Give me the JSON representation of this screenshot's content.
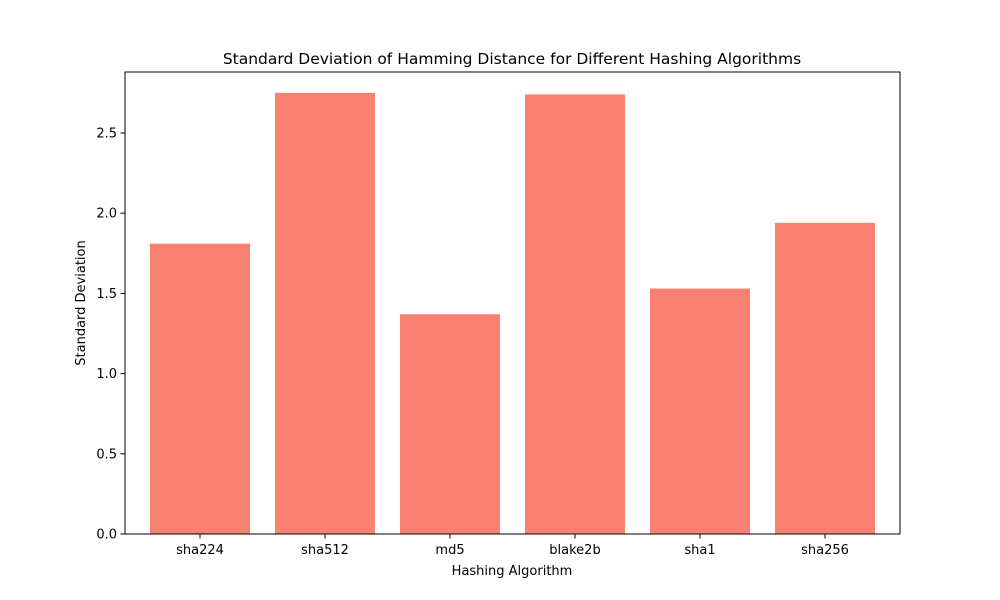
{
  "chart_data": {
    "type": "bar",
    "title": "Standard Deviation of Hamming Distance for Different Hashing Algorithms",
    "xlabel": "Hashing Algorithm",
    "ylabel": "Standard Deviation",
    "categories": [
      "sha224",
      "sha512",
      "md5",
      "blake2b",
      "sha1",
      "sha256"
    ],
    "values": [
      1.81,
      2.75,
      1.37,
      2.74,
      1.53,
      1.94
    ],
    "ylim": [
      0,
      2.88
    ],
    "yticks": [
      0.0,
      0.5,
      1.0,
      1.5,
      2.0,
      2.5
    ],
    "ytick_labels": [
      "0.0",
      "0.5",
      "1.0",
      "1.5",
      "2.0",
      "2.5"
    ],
    "grid": false,
    "bar_color": "#fa8072"
  }
}
